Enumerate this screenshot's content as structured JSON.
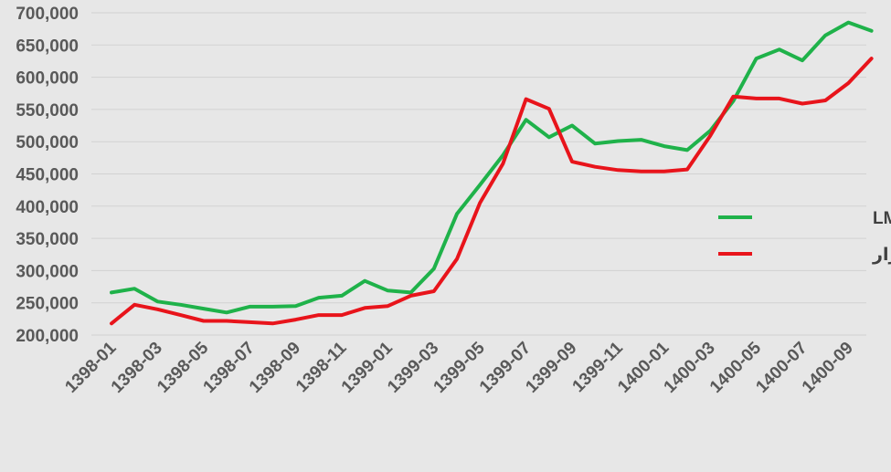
{
  "chart_data": {
    "type": "line",
    "x": [
      "1398-01",
      "1398-02",
      "1398-03",
      "1398-04",
      "1398-05",
      "1398-06",
      "1398-07",
      "1398-08",
      "1398-09",
      "1398-10",
      "1398-11",
      "1398-12",
      "1399-01",
      "1399-02",
      "1399-03",
      "1399-04",
      "1399-05",
      "1399-06",
      "1399-07",
      "1399-08",
      "1399-09",
      "1399-10",
      "1399-11",
      "1399-12",
      "1400-01",
      "1400-02",
      "1400-03",
      "1400-04",
      "1400-05",
      "1400-06",
      "1400-07",
      "1400-08",
      "1400-09",
      "1400-10"
    ],
    "x_tick_labels": [
      "1398-01",
      "1398-03",
      "1398-05",
      "1398-07",
      "1398-09",
      "1398-11",
      "1399-01",
      "1399-03",
      "1399-05",
      "1399-07",
      "1399-09",
      "1399-11",
      "1400-01",
      "1400-03",
      "1400-05",
      "1400-07",
      "1400-09"
    ],
    "series": [
      {
        "name": "دلار بازار*LME",
        "color": "#1fb24a",
        "values": [
          266000,
          272000,
          252000,
          247000,
          241000,
          235000,
          244000,
          244000,
          245000,
          258000,
          261000,
          284000,
          269000,
          266000,
          303000,
          388000,
          433000,
          479000,
          534000,
          507000,
          525000,
          497000,
          501000,
          503000,
          493000,
          487000,
          517000,
          563000,
          629000,
          643000,
          626000,
          665000,
          685000,
          672000
        ]
      },
      {
        "name": "سرب بازار",
        "color": "#e8141b",
        "values": [
          218000,
          247000,
          240000,
          231000,
          222000,
          222000,
          220000,
          218000,
          224000,
          231000,
          231000,
          242000,
          245000,
          261000,
          268000,
          318000,
          405000,
          466000,
          566000,
          551000,
          469000,
          461000,
          456000,
          454000,
          454000,
          457000,
          509000,
          570000,
          567000,
          567000,
          559000,
          564000,
          591000,
          629000
        ]
      }
    ],
    "ylim": [
      200000,
      700000
    ],
    "yticks": [
      "200,000",
      "250,000",
      "300,000",
      "350,000",
      "400,000",
      "450,000",
      "500,000",
      "550,000",
      "600,000",
      "650,000",
      "700,000"
    ],
    "ytick_values": [
      200000,
      250000,
      300000,
      350000,
      400000,
      450000,
      500000,
      550000,
      600000,
      650000,
      700000
    ],
    "grid": "horizontal",
    "legend_position": "right"
  }
}
